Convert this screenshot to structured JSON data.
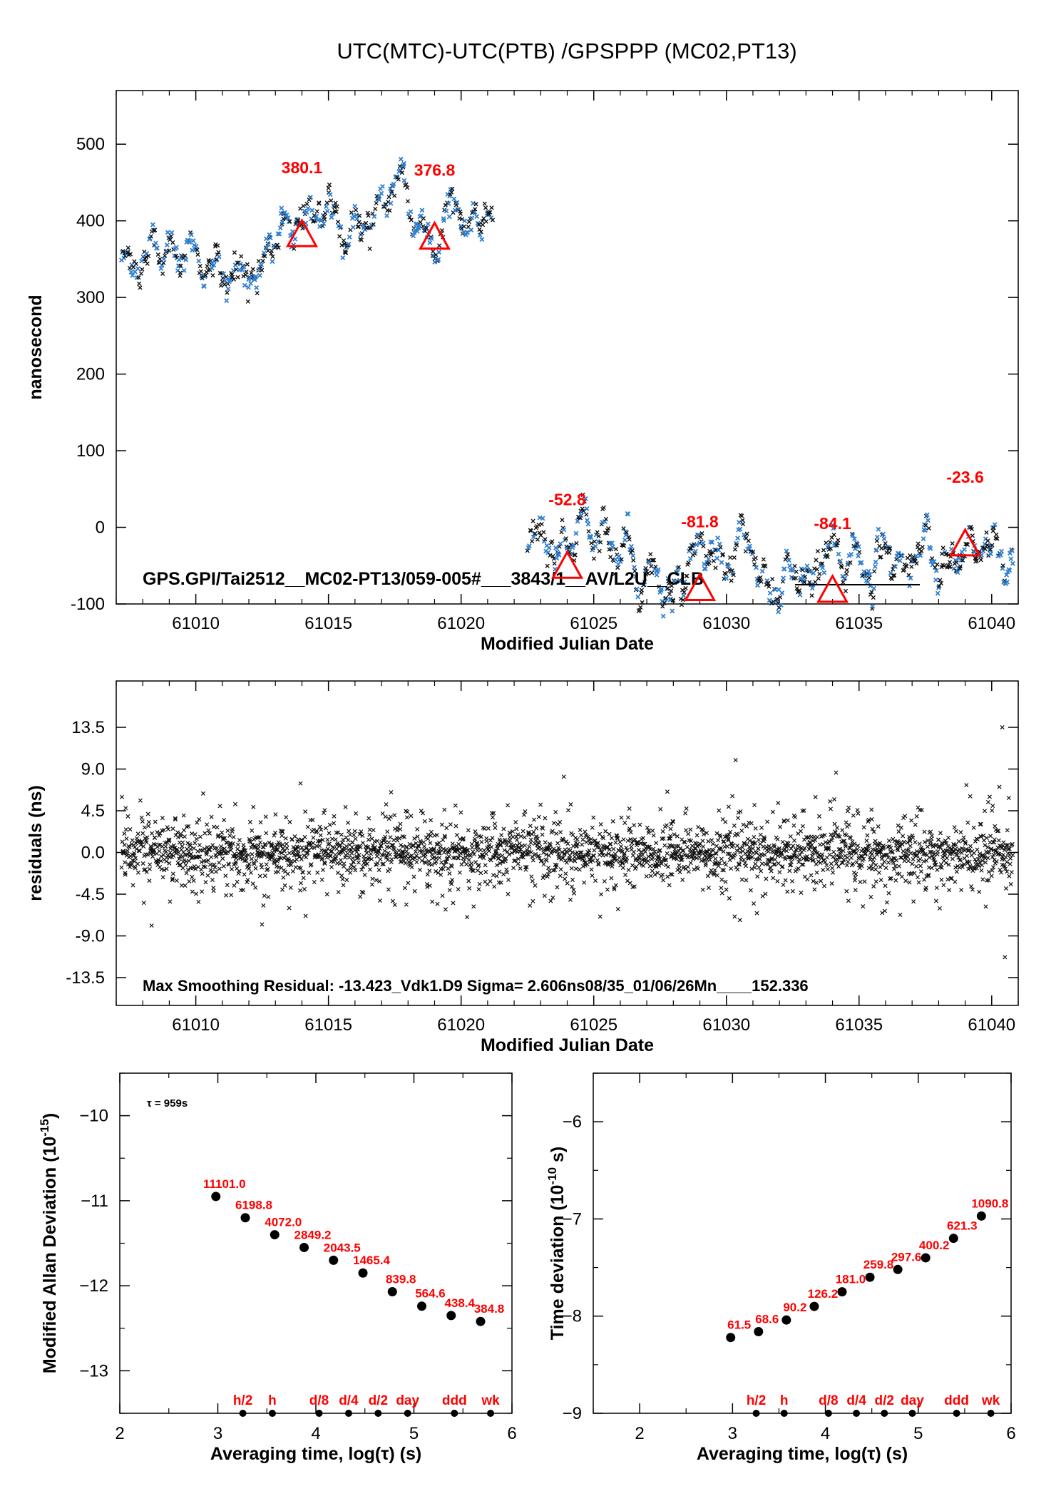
{
  "page_title": "UTC(MTC)-UTC(PTB)  /GPSPPP  (MC02,PT13)",
  "colors": {
    "data_blue": "#2f7fd0",
    "red": "#ff0000",
    "black": "#000000"
  },
  "chart_data": [
    {
      "id": "top",
      "type": "scatter",
      "xlabel": "Modified Julian Date",
      "ylabel": "nanosecond",
      "xlim": [
        61007,
        61041
      ],
      "ylim": [
        -100,
        570
      ],
      "xticks": [
        61010,
        61015,
        61020,
        61025,
        61030,
        61035,
        61040
      ],
      "yticks": [
        -100,
        0,
        100,
        200,
        300,
        400,
        500
      ],
      "segments": [
        {
          "x_start": 61007.2,
          "x_end": 61021.2,
          "trend": [
            [
              61007.2,
              340
            ],
            [
              61009,
              355
            ],
            [
              61011,
              345
            ],
            [
              61013,
              375
            ],
            [
              61015,
              385
            ],
            [
              61017,
              400
            ],
            [
              61018,
              420
            ],
            [
              61019,
              385
            ],
            [
              61020,
              410
            ],
            [
              61021.2,
              395
            ]
          ],
          "spread": 45
        },
        {
          "x_start": 61022.5,
          "x_end": 61040.8,
          "trend": [
            [
              61022.5,
              -20
            ],
            [
              61024,
              -30
            ],
            [
              61025,
              -10
            ],
            [
              61027,
              -55
            ],
            [
              61029,
              -45
            ],
            [
              61031,
              -40
            ],
            [
              61033,
              -60
            ],
            [
              61035,
              -35
            ],
            [
              61037,
              -55
            ],
            [
              61039,
              -20
            ],
            [
              61040.8,
              -30
            ]
          ],
          "spread": 45
        }
      ],
      "markers": [
        {
          "x": 61014,
          "y": 380.1,
          "label": "380.1"
        },
        {
          "x": 61019,
          "y": 376.8,
          "label": "376.8"
        },
        {
          "x": 61024,
          "y": -52.8,
          "label": "-52.8"
        },
        {
          "x": 61029,
          "y": -81.8,
          "label": "-81.8"
        },
        {
          "x": 61034,
          "y": -84.1,
          "label": "-84.1"
        },
        {
          "x": 61039,
          "y": -23.6,
          "label": "-23.6"
        }
      ],
      "annotation": "GPS.GPI/Tai2512__MC02-PT13/059-005#___3843/1__AV/L2U__CLB"
    },
    {
      "id": "residuals",
      "type": "scatter",
      "xlabel": "Modified Julian Date",
      "ylabel": "residuals (ns)",
      "xlim": [
        61007,
        61041
      ],
      "ylim": [
        -16.5,
        18.5
      ],
      "xticks": [
        61010,
        61015,
        61020,
        61025,
        61030,
        61035,
        61040
      ],
      "yticks": [
        13.5,
        9.0,
        4.5,
        0.0,
        -4.5,
        -9.0,
        -13.5
      ],
      "ytick_labels": [
        "13.5",
        "9.0",
        "4.5",
        "0.0",
        "-4.5",
        "-9.0",
        "-13.5"
      ],
      "x_range": [
        61007.2,
        61040.8
      ],
      "sigma": 2.606,
      "max_residual": -13.423,
      "annotation": "Max Smoothing Residual: -13.423_Vdk1.D9  Sigma= 2.606ns08/35_01/06/26Mn____152.336"
    },
    {
      "id": "mdev",
      "type": "scatter",
      "xlabel": "Averaging time, log(τ) (s)",
      "ylabel_main": "Modified Allan Deviation (10",
      "ylabel_sup": "-15",
      "ylabel_end": ")",
      "xlim": [
        2,
        6
      ],
      "ylim": [
        -13.5,
        -9.5
      ],
      "xticks": [
        2,
        3,
        4,
        5,
        6
      ],
      "yticks": [
        -10,
        -11,
        -12,
        -13
      ],
      "tau_note": "τ = 959s",
      "points": [
        {
          "x": 2.98,
          "y": -10.95,
          "label": "11101.0"
        },
        {
          "x": 3.28,
          "y": -11.2,
          "label": "6198.8"
        },
        {
          "x": 3.58,
          "y": -11.4,
          "label": "4072.0"
        },
        {
          "x": 3.88,
          "y": -11.55,
          "label": "2849.2"
        },
        {
          "x": 4.18,
          "y": -11.7,
          "label": "2043.5"
        },
        {
          "x": 4.48,
          "y": -11.85,
          "label": "1465.4"
        },
        {
          "x": 4.78,
          "y": -12.07,
          "label": "839.8"
        },
        {
          "x": 5.08,
          "y": -12.24,
          "label": "564.6"
        },
        {
          "x": 5.38,
          "y": -12.35,
          "label": "438.4"
        },
        {
          "x": 5.68,
          "y": -12.42,
          "label": "384.8"
        }
      ],
      "time_markers": [
        {
          "x": 3.255,
          "label": "h/2"
        },
        {
          "x": 3.556,
          "label": "h"
        },
        {
          "x": 4.033,
          "label": "d/8"
        },
        {
          "x": 4.334,
          "label": "d/4"
        },
        {
          "x": 4.635,
          "label": "d/2"
        },
        {
          "x": 4.936,
          "label": "day"
        },
        {
          "x": 5.413,
          "label": "ddd"
        },
        {
          "x": 5.782,
          "label": "wk"
        }
      ]
    },
    {
      "id": "tdev",
      "type": "scatter",
      "xlabel": "Averaging time, log(τ) (s)",
      "ylabel_main": "Time deviation (10",
      "ylabel_sup": "-10",
      "ylabel_end": " s)",
      "xlim": [
        1.5,
        6
      ],
      "ylim": [
        -9,
        -5.5
      ],
      "xticks": [
        2,
        3,
        4,
        5,
        6
      ],
      "yticks": [
        -6,
        -7,
        -8,
        -9
      ],
      "points": [
        {
          "x": 2.98,
          "y": -8.22,
          "label": "61.5"
        },
        {
          "x": 3.28,
          "y": -8.16,
          "label": "68.6"
        },
        {
          "x": 3.58,
          "y": -8.04,
          "label": "90.2"
        },
        {
          "x": 3.88,
          "y": -7.9,
          "label": "126.2"
        },
        {
          "x": 4.18,
          "y": -7.75,
          "label": "181.0"
        },
        {
          "x": 4.48,
          "y": -7.6,
          "label": "259.8"
        },
        {
          "x": 4.78,
          "y": -7.52,
          "label": "297.6"
        },
        {
          "x": 5.08,
          "y": -7.4,
          "label": "400.2"
        },
        {
          "x": 5.38,
          "y": -7.2,
          "label": "621.3"
        },
        {
          "x": 5.68,
          "y": -6.97,
          "label": "1090.8"
        }
      ],
      "time_markers": [
        {
          "x": 3.255,
          "label": "h/2"
        },
        {
          "x": 3.556,
          "label": "h"
        },
        {
          "x": 4.033,
          "label": "d/8"
        },
        {
          "x": 4.334,
          "label": "d/4"
        },
        {
          "x": 4.635,
          "label": "d/2"
        },
        {
          "x": 4.936,
          "label": "day"
        },
        {
          "x": 5.413,
          "label": "ddd"
        },
        {
          "x": 5.782,
          "label": "wk"
        }
      ]
    }
  ]
}
